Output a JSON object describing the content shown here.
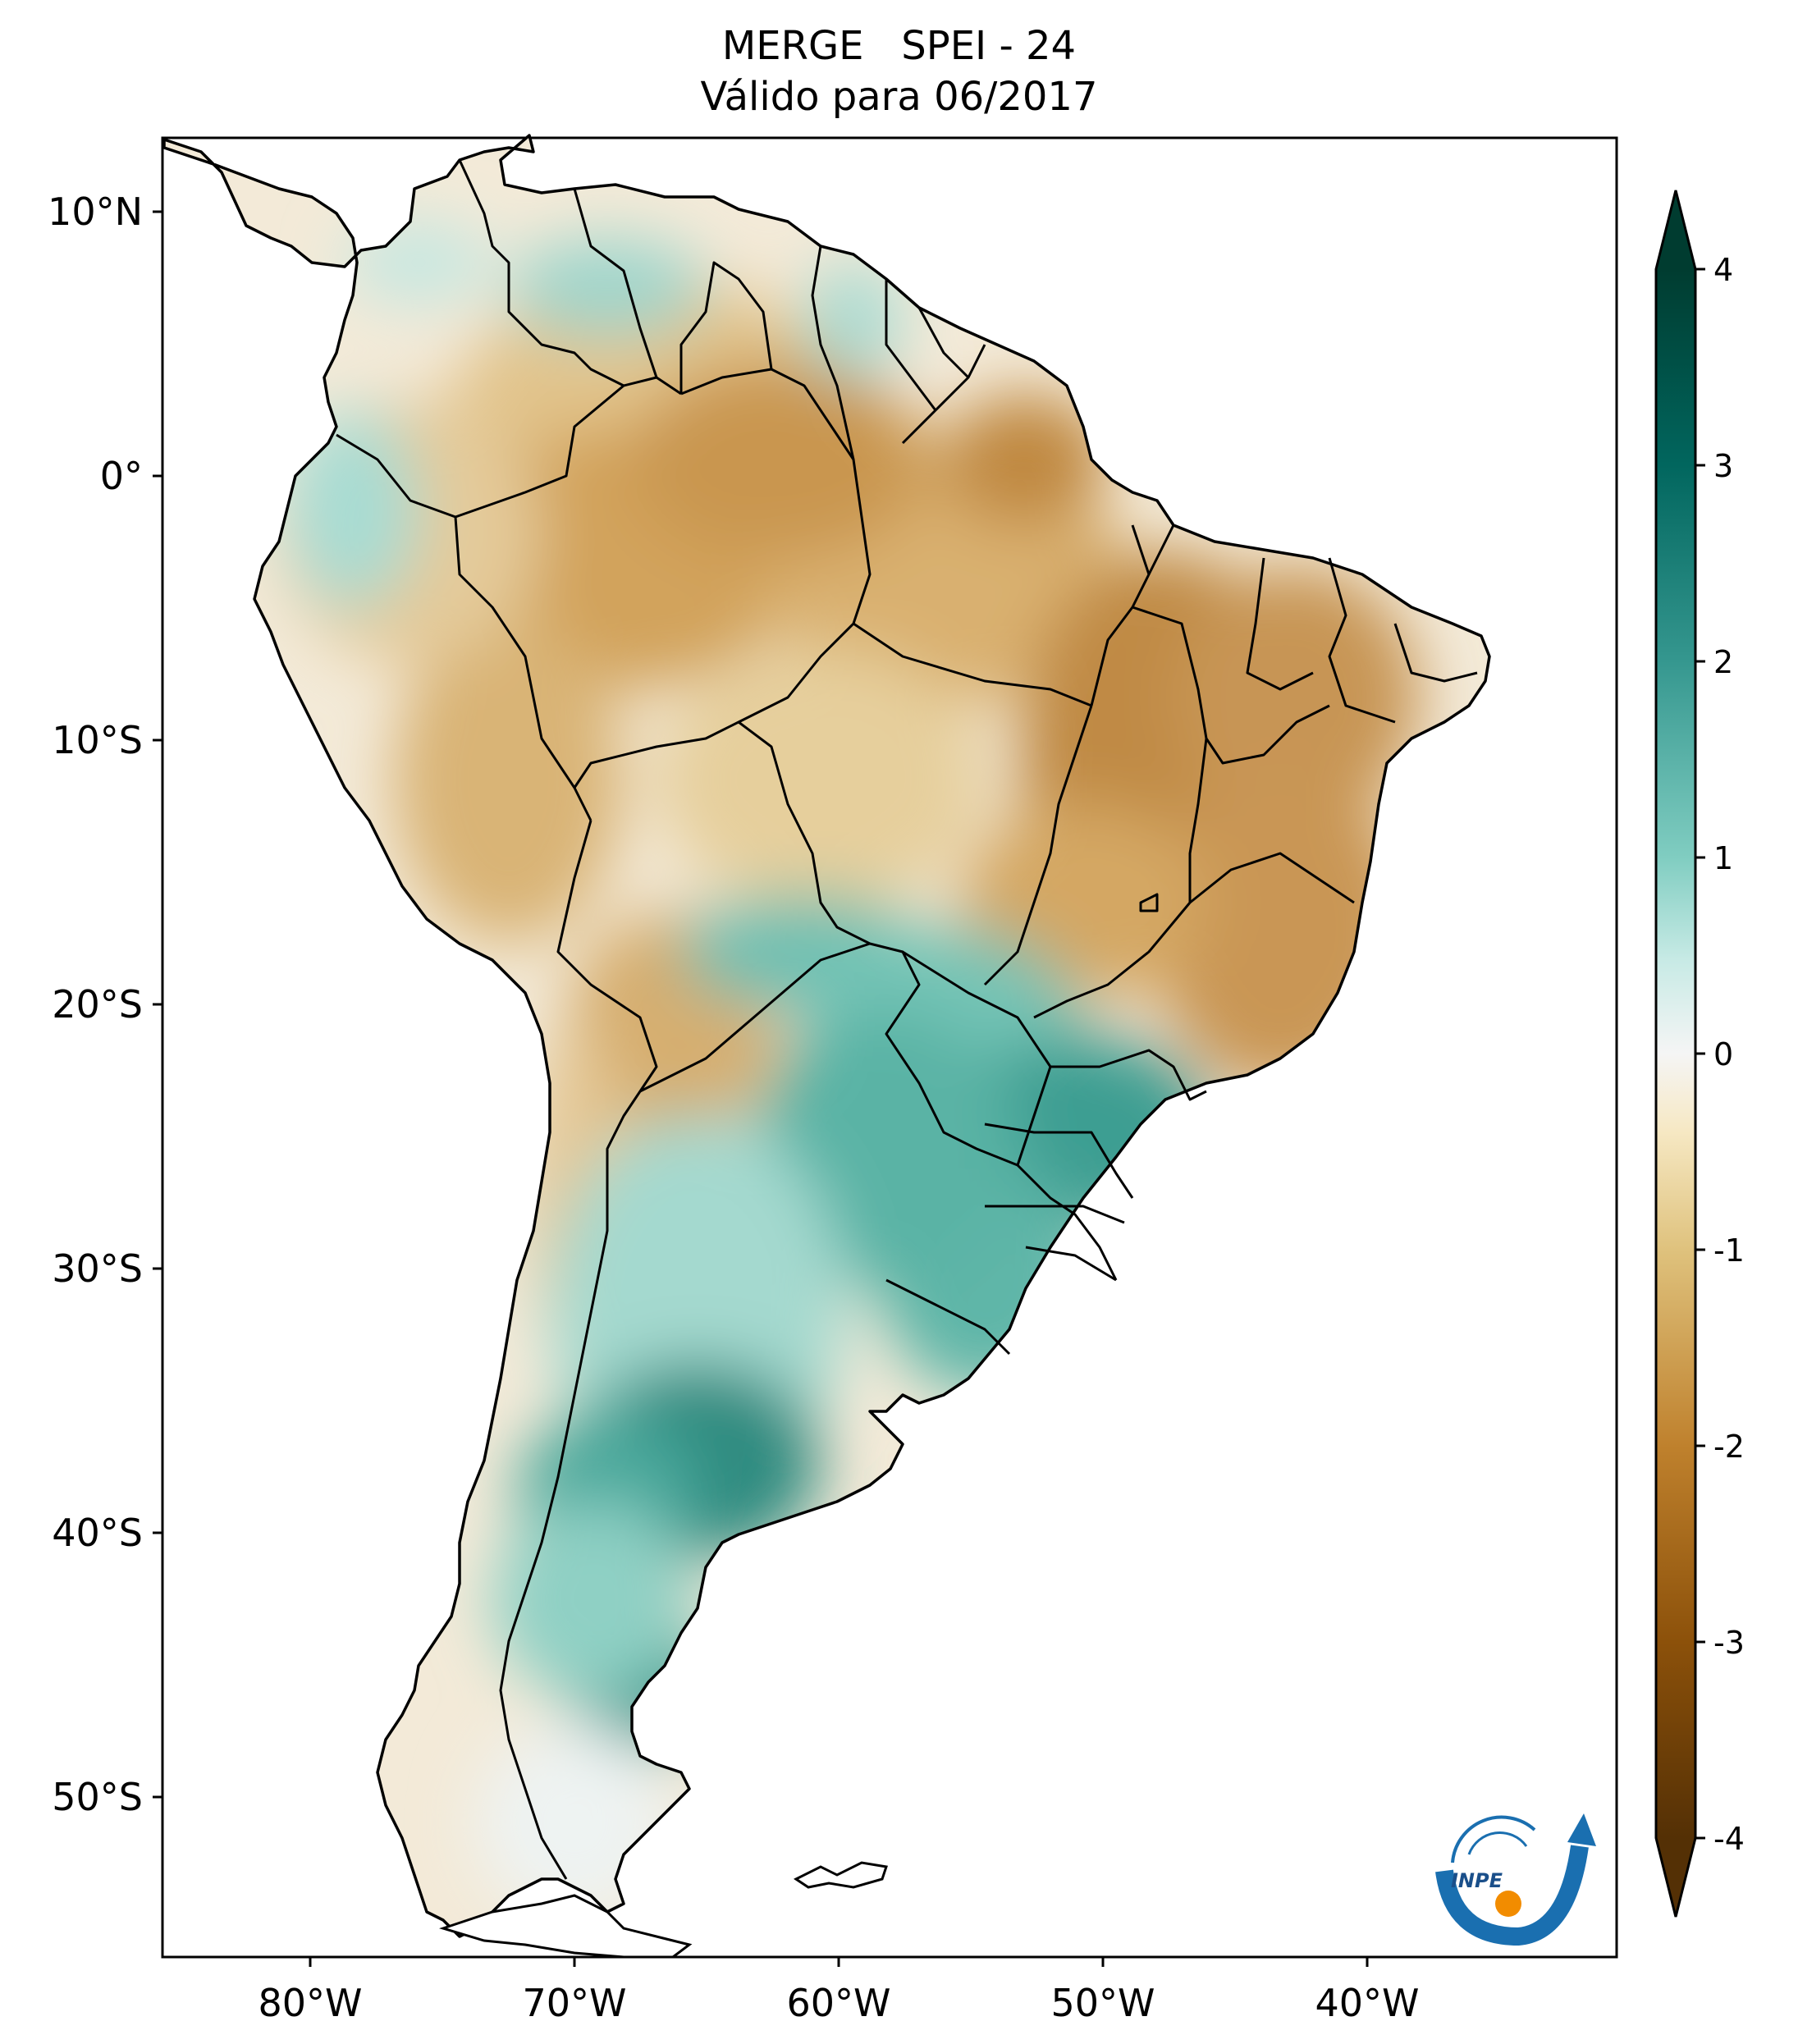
{
  "title": {
    "line1": "MERGE   SPEI - 24",
    "line2": "Válido para 06/2017"
  },
  "map": {
    "lon_range": [
      -85,
      -30
    ],
    "lat_range": [
      -56,
      13
    ],
    "lon_ticks": [
      "80°W",
      "70°W",
      "60°W",
      "50°W",
      "40°W"
    ],
    "lat_ticks": [
      "10°N",
      "0°",
      "10°S",
      "20°S",
      "30°S",
      "40°S",
      "50°S"
    ],
    "coastline": "black",
    "field": "SPEI-24 drought index (brown = dry, teal = wet)"
  },
  "colorbar": {
    "orientation": "vertical",
    "ticks": [
      "4",
      "3",
      "2",
      "1",
      "0",
      "-1",
      "-2",
      "-3",
      "-4"
    ],
    "range": [
      -4,
      4
    ],
    "extend": "both",
    "colors": {
      "-4": "#543005",
      "-3": "#8c510a",
      "-2": "#bf812d",
      "-1": "#dfc27d",
      "-0.5": "#f6e8c3",
      "0": "#f5f5f5",
      "0.5": "#c7eae5",
      "1": "#80cdc1",
      "2": "#35978f",
      "3": "#01665e",
      "4": "#003c30"
    }
  },
  "logo": {
    "text": "INPE",
    "icon": "inpe-logo-icon"
  }
}
